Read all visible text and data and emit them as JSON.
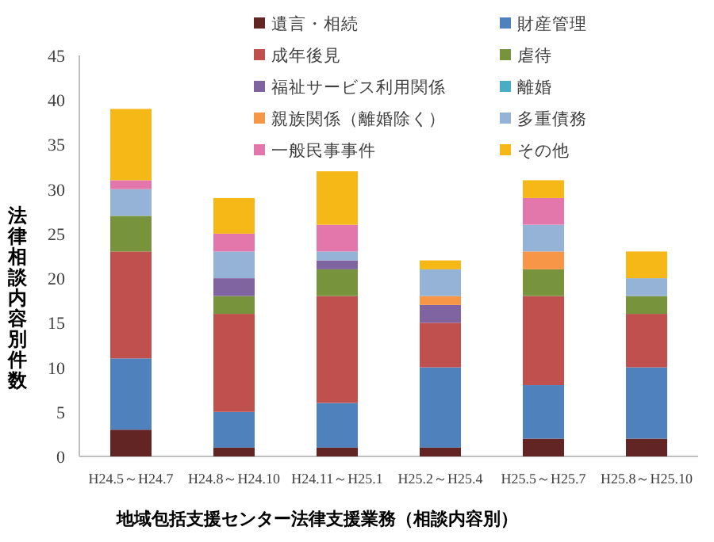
{
  "chart_data": {
    "type": "bar",
    "stacked": true,
    "ylabel": "法律相談内容別件数",
    "xlabel": "地域包括支援センター法律支援業務（相談内容別）",
    "categories": [
      "H24.5～H24.7",
      "H24.8～H24.10",
      "H24.11～H25.1",
      "H25.2～H25.4",
      "H25.5～H25.7",
      "H25.8～H25.10"
    ],
    "ylim": [
      0,
      45
    ],
    "yticks": [
      0,
      5,
      10,
      15,
      20,
      25,
      30,
      35,
      40,
      45
    ],
    "grid": false,
    "legend": "top",
    "series": [
      {
        "name": "遺言・相続",
        "color": "#632523",
        "values": [
          3,
          1,
          1,
          1,
          2,
          2
        ]
      },
      {
        "name": "財産管理",
        "color": "#4f81bd",
        "values": [
          8,
          4,
          5,
          9,
          6,
          8
        ]
      },
      {
        "name": "成年後見",
        "color": "#c0504d",
        "values": [
          12,
          11,
          12,
          5,
          10,
          6
        ]
      },
      {
        "name": "虐待",
        "color": "#77933c",
        "values": [
          4,
          2,
          3,
          0,
          3,
          2
        ]
      },
      {
        "name": "福祉サービス利用関係",
        "color": "#8064a2",
        "values": [
          0,
          2,
          1,
          2,
          0,
          0
        ]
      },
      {
        "name": "離婚",
        "color": "#4bacc6",
        "values": [
          0,
          0,
          0,
          0,
          0,
          0
        ]
      },
      {
        "name": "親族関係（離婚除く）",
        "color": "#f79646",
        "values": [
          0,
          0,
          0,
          1,
          2,
          0
        ]
      },
      {
        "name": "多重債務",
        "color": "#95b3d7",
        "values": [
          3,
          3,
          1,
          3,
          3,
          2
        ]
      },
      {
        "name": "一般民事事件",
        "color": "#e377ac",
        "values": [
          1,
          2,
          3,
          0,
          3,
          0
        ]
      },
      {
        "name": "その他",
        "color": "#f5b817",
        "values": [
          8,
          4,
          6,
          1,
          2,
          3
        ]
      }
    ]
  }
}
